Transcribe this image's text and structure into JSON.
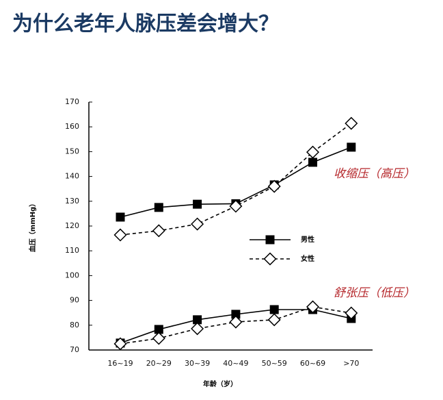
{
  "chart_data": {
    "type": "line",
    "title": "为什么老年人脉压差会增大？",
    "ylabel": "血压（mmHg）",
    "xlabel": "年龄（岁）",
    "categories": [
      "16~19",
      "20~29",
      "30~39",
      "40~49",
      "50~59",
      "60~69",
      ">70"
    ],
    "ylim": [
      70,
      170
    ],
    "yticks": [
      70,
      80,
      90,
      100,
      110,
      120,
      130,
      140,
      150,
      160,
      170
    ],
    "annotations": [
      "收缩压（高压）",
      "舒张压（低压）"
    ],
    "series": [
      {
        "name": "男性",
        "color": "#000000",
        "marker": "square",
        "dashed": false,
        "values": [
          123.6,
          127.5,
          128.8,
          129,
          136.6,
          145.7,
          151.8
        ],
        "low_values": [
          72.8,
          78.3,
          82.2,
          84.4,
          86.3,
          86.3,
          82.7
        ]
      },
      {
        "name": "女性",
        "color": "#000000",
        "marker": "diamond",
        "dashed": true,
        "values": [
          116.4,
          118.1,
          120.8,
          128,
          136,
          149.8,
          161.4
        ],
        "low_values": [
          72.5,
          74.7,
          78.6,
          81.3,
          82.2,
          87.4,
          84.9
        ]
      }
    ]
  }
}
